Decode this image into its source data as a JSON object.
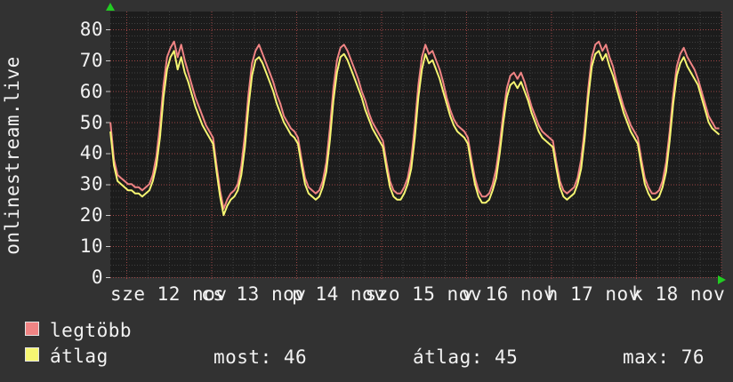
{
  "app": {
    "watermark": "onlinestream.live"
  },
  "colors": {
    "background": "#323232",
    "plot_background": "#1c1c1c",
    "grid_minor": "#404040",
    "grid_major": "#9c4545",
    "axis_tick": "#cccccc",
    "arrow": "#22cc22",
    "text": "#f2f2f2",
    "series_max": "#f08484",
    "series_avg": "#f6f672"
  },
  "legend": {
    "items": [
      {
        "label": "legtöbb",
        "color": "#f08484"
      },
      {
        "label": "átlag",
        "color": "#f6f672"
      }
    ]
  },
  "stats": [
    {
      "label": "most:",
      "value": "46"
    },
    {
      "label": "átlag:",
      "value": "45"
    },
    {
      "label": "max:",
      "value": "76"
    }
  ],
  "chart_data": {
    "type": "line",
    "title": "",
    "xlabel": "",
    "ylabel": "",
    "grid": true,
    "legend_position": "bottom-left",
    "ylim": [
      0,
      85.7
    ],
    "y_ticks": [
      0,
      10,
      20,
      30,
      40,
      50,
      60,
      70,
      80
    ],
    "y_minor_step": 2,
    "x_tick_labels": [
      "sze 12 nov",
      "cs 13 nov",
      "p 14 nov",
      "szo 15 nov",
      "v 16 nov",
      "h 17 nov",
      "k 18 nov"
    ],
    "x_major_every_hours": 24,
    "x_minor_every_hours": 6,
    "x_start_hour": -4.5,
    "x_step_hours": 1,
    "x_total_days": 7,
    "stats_values": {
      "most": 46,
      "atlag": 45,
      "max": 76
    },
    "series": [
      {
        "name": "legtöbb",
        "color": "#f08484",
        "values": [
          50,
          38,
          33,
          32,
          31,
          30,
          30,
          29,
          29,
          28,
          29,
          30,
          33,
          39,
          49,
          62,
          71,
          74,
          76,
          71,
          75,
          70,
          66,
          62,
          58,
          55,
          52,
          49,
          47,
          45,
          36,
          28,
          22,
          25,
          27,
          28,
          30,
          36,
          46,
          59,
          69,
          73,
          75,
          72,
          69,
          66,
          63,
          59,
          56,
          52,
          50,
          48,
          47,
          45,
          38,
          32,
          29,
          28,
          27,
          28,
          31,
          37,
          48,
          61,
          70,
          74,
          75,
          73,
          70,
          67,
          64,
          60,
          57,
          53,
          50,
          48,
          46,
          44,
          37,
          31,
          28,
          27,
          27,
          29,
          32,
          38,
          49,
          62,
          71,
          75,
          72,
          73,
          70,
          67,
          63,
          58,
          54,
          51,
          49,
          48,
          47,
          45,
          38,
          32,
          28,
          26,
          26,
          27,
          30,
          35,
          43,
          53,
          61,
          65,
          66,
          64,
          66,
          63,
          59,
          55,
          52,
          49,
          47,
          46,
          45,
          44,
          37,
          31,
          28,
          27,
          28,
          29,
          32,
          38,
          48,
          61,
          71,
          75,
          76,
          73,
          75,
          71,
          68,
          63,
          59,
          55,
          52,
          49,
          47,
          45,
          38,
          32,
          29,
          27,
          27,
          28,
          31,
          37,
          47,
          59,
          68,
          72,
          74,
          71,
          69,
          67,
          64,
          60,
          56,
          52,
          50,
          48,
          48
        ]
      },
      {
        "name": "átlag",
        "color": "#f6f672",
        "values": [
          47,
          36,
          31,
          30,
          29,
          28,
          28,
          27,
          27,
          26,
          27,
          28,
          31,
          36,
          45,
          58,
          67,
          71,
          73,
          67,
          71,
          66,
          63,
          59,
          55,
          52,
          49,
          47,
          45,
          43,
          34,
          26,
          20,
          23,
          25,
          26,
          28,
          33,
          42,
          55,
          65,
          70,
          71,
          69,
          66,
          63,
          60,
          56,
          53,
          50,
          48,
          46,
          45,
          43,
          36,
          30,
          27,
          26,
          25,
          26,
          29,
          34,
          44,
          57,
          66,
          71,
          72,
          70,
          67,
          64,
          61,
          58,
          54,
          51,
          48,
          46,
          44,
          42,
          35,
          29,
          26,
          25,
          25,
          27,
          30,
          35,
          45,
          58,
          67,
          72,
          69,
          70,
          67,
          64,
          60,
          56,
          52,
          49,
          47,
          46,
          45,
          43,
          36,
          30,
          26,
          24,
          24,
          25,
          28,
          32,
          40,
          50,
          58,
          62,
          63,
          61,
          63,
          60,
          57,
          53,
          50,
          47,
          45,
          44,
          43,
          42,
          35,
          29,
          26,
          25,
          26,
          27,
          30,
          35,
          45,
          58,
          68,
          72,
          73,
          70,
          72,
          68,
          65,
          61,
          57,
          53,
          50,
          47,
          45,
          43,
          36,
          30,
          27,
          25,
          25,
          26,
          29,
          34,
          44,
          56,
          65,
          69,
          71,
          68,
          66,
          64,
          62,
          58,
          54,
          50,
          48,
          47,
          46
        ]
      }
    ]
  }
}
